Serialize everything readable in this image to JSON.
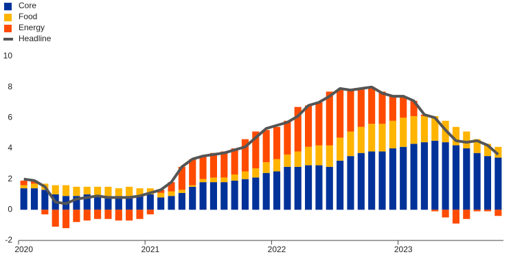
{
  "chart_data": {
    "type": "bar",
    "stacked": true,
    "categories": [
      "2020",
      null,
      null,
      null,
      null,
      null,
      null,
      null,
      null,
      null,
      null,
      null,
      "2021",
      null,
      null,
      null,
      null,
      null,
      null,
      null,
      null,
      null,
      null,
      null,
      "2022",
      null,
      null,
      null,
      null,
      null,
      null,
      null,
      null,
      null,
      null,
      null,
      "2023",
      null,
      null,
      null,
      null,
      null,
      null,
      null,
      null,
      null
    ],
    "series": [
      {
        "name": "Core",
        "color": "#003299",
        "type": "bar",
        "values": [
          1.4,
          1.4,
          1.3,
          1.0,
          0.9,
          0.9,
          1.0,
          0.9,
          0.9,
          0.9,
          0.9,
          0.9,
          1.0,
          0.8,
          0.9,
          1.1,
          1.5,
          1.8,
          1.8,
          1.8,
          1.9,
          2.0,
          2.1,
          2.4,
          2.5,
          2.8,
          2.8,
          2.9,
          2.9,
          2.8,
          3.2,
          3.5,
          3.7,
          3.8,
          3.8,
          4.0,
          4.1,
          4.3,
          4.4,
          4.5,
          4.4,
          4.2,
          4.0,
          3.7,
          3.5,
          3.4
        ]
      },
      {
        "name": "Food",
        "color": "#ffb400",
        "type": "bar",
        "values": [
          0.2,
          0.3,
          0.4,
          0.6,
          0.7,
          0.6,
          0.5,
          0.6,
          0.6,
          0.5,
          0.6,
          0.5,
          0.4,
          0.3,
          0.3,
          0.2,
          0.1,
          0.2,
          0.3,
          0.3,
          0.4,
          0.5,
          0.6,
          0.7,
          0.8,
          0.8,
          1.0,
          1.2,
          1.3,
          1.4,
          1.5,
          1.6,
          1.7,
          1.8,
          1.8,
          1.8,
          1.9,
          1.8,
          1.7,
          1.6,
          1.4,
          1.2,
          1.1,
          0.9,
          0.8,
          0.7
        ]
      },
      {
        "name": "Energy",
        "color": "#ff4b00",
        "type": "bar",
        "values": [
          0.3,
          0.2,
          -0.3,
          -1.1,
          -1.2,
          -0.8,
          -0.7,
          -0.6,
          -0.6,
          -0.7,
          -0.7,
          -0.6,
          -0.3,
          0.2,
          0.6,
          1.5,
          1.7,
          1.5,
          1.6,
          1.7,
          1.7,
          2.1,
          2.4,
          2.1,
          2.1,
          2.2,
          2.9,
          2.7,
          2.8,
          3.5,
          3.1,
          2.7,
          2.5,
          2.4,
          2.1,
          1.6,
          1.4,
          1.0,
          0.1,
          -0.1,
          -0.5,
          -0.9,
          -0.6,
          -0.1,
          -0.1,
          -0.4
        ]
      },
      {
        "name": "Headline",
        "color": "#555555",
        "type": "line",
        "values": [
          2.0,
          1.9,
          1.5,
          0.5,
          0.4,
          0.7,
          0.8,
          0.9,
          0.8,
          0.8,
          0.8,
          0.9,
          1.1,
          1.3,
          1.8,
          2.8,
          3.3,
          3.5,
          3.6,
          3.7,
          3.9,
          4.1,
          4.7,
          5.3,
          5.5,
          5.7,
          6.1,
          6.8,
          7.0,
          7.4,
          7.9,
          7.8,
          7.9,
          8.0,
          7.6,
          7.4,
          7.4,
          7.1,
          6.2,
          6.0,
          5.2,
          4.5,
          4.4,
          4.5,
          4.2,
          3.6
        ]
      }
    ],
    "ylim": [
      -2,
      10
    ],
    "yticks": [
      -2,
      0,
      2,
      4,
      6,
      8,
      10
    ],
    "legend": "top-left"
  }
}
